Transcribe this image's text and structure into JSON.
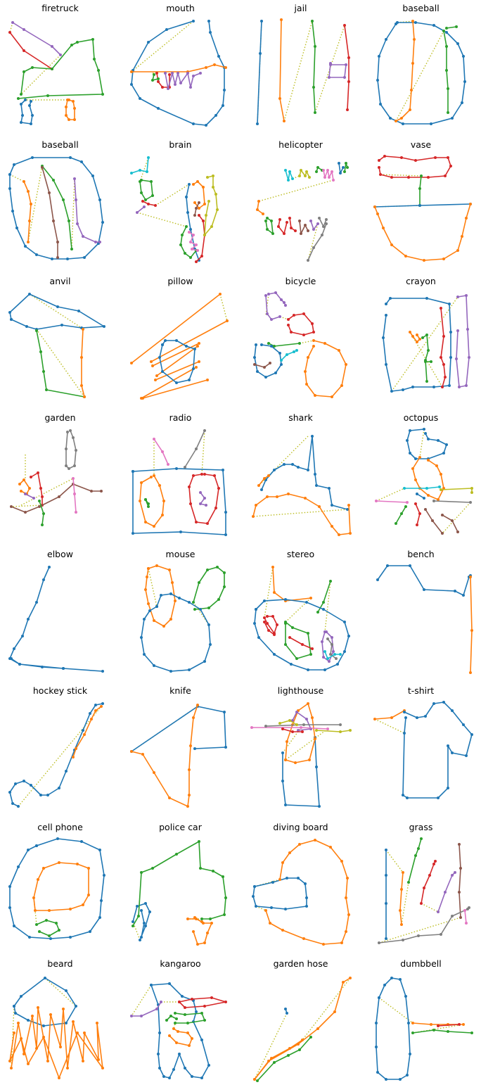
{
  "colors": {
    "stroke_palette": [
      "#1f77b4",
      "#ff7f0e",
      "#2ca02c",
      "#d62728",
      "#9467bd",
      "#8c564b",
      "#e377c2",
      "#7f7f7f",
      "#bcbd22",
      "#17becf"
    ],
    "connector": "#bcbd22",
    "background": "#ffffff"
  },
  "panels": [
    {
      "title": "firetruck"
    },
    {
      "title": "mouth"
    },
    {
      "title": "jail"
    },
    {
      "title": "baseball"
    },
    {
      "title": "baseball"
    },
    {
      "title": "brain"
    },
    {
      "title": "helicopter"
    },
    {
      "title": "vase"
    },
    {
      "title": "anvil"
    },
    {
      "title": "pillow"
    },
    {
      "title": "bicycle"
    },
    {
      "title": "crayon"
    },
    {
      "title": "garden"
    },
    {
      "title": "radio"
    },
    {
      "title": "shark"
    },
    {
      "title": "octopus"
    },
    {
      "title": "elbow"
    },
    {
      "title": "mouse"
    },
    {
      "title": "stereo"
    },
    {
      "title": "bench"
    },
    {
      "title": "hockey stick"
    },
    {
      "title": "knife"
    },
    {
      "title": "lighthouse"
    },
    {
      "title": "t-shirt"
    },
    {
      "title": "cell phone"
    },
    {
      "title": "police car"
    },
    {
      "title": "diving board"
    },
    {
      "title": "grass"
    },
    {
      "title": "beard"
    },
    {
      "title": "kangaroo"
    },
    {
      "title": "garden hose"
    },
    {
      "title": "dumbbell"
    }
  ]
}
